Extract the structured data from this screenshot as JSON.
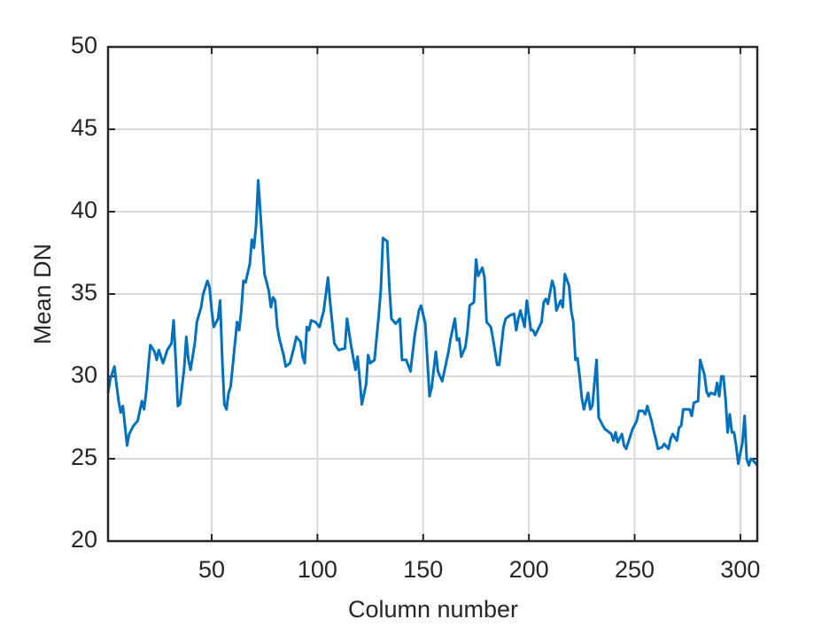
{
  "chart_data": {
    "type": "line",
    "xlabel": "Column number",
    "ylabel": "Mean DN",
    "color": "#0072bd",
    "grid": true,
    "xlim": [
      1,
      308
    ],
    "xticks": [
      50,
      100,
      150,
      200,
      250,
      300
    ],
    "ylim": [
      20,
      50
    ],
    "yticks": [
      20,
      25,
      30,
      35,
      40,
      45,
      50
    ],
    "x": [
      1,
      2,
      4,
      5,
      6,
      7,
      8,
      9,
      10,
      11,
      13,
      15,
      17,
      18,
      19,
      20,
      21,
      23,
      24,
      25,
      27,
      29,
      31,
      32,
      33,
      34,
      35,
      37,
      38,
      39,
      40,
      42,
      43,
      45,
      46,
      48,
      49,
      50,
      51,
      53,
      54,
      55,
      56,
      57,
      58,
      59,
      61,
      62,
      63,
      64,
      65,
      66,
      68,
      69,
      70,
      71,
      72,
      73,
      74,
      75,
      77,
      78,
      79,
      80,
      81,
      82,
      84,
      85,
      87,
      89,
      90,
      92,
      93,
      94,
      95,
      96,
      97,
      99,
      101,
      103,
      105,
      106,
      108,
      110,
      113,
      114,
      116,
      118,
      119,
      120,
      121,
      123,
      124,
      125,
      127,
      129,
      130,
      131,
      133,
      134,
      135,
      137,
      139,
      140,
      142,
      144,
      146,
      148,
      149,
      151,
      152,
      153,
      154,
      156,
      157,
      159,
      160,
      162,
      163,
      165,
      166,
      167,
      168,
      170,
      171,
      172,
      174,
      175,
      176,
      178,
      179,
      180,
      182,
      183,
      185,
      186,
      188,
      189,
      191,
      193,
      194,
      195,
      196,
      198,
      199,
      201,
      202,
      203,
      206,
      207,
      208,
      209,
      211,
      212,
      213,
      215,
      216,
      217,
      219,
      220,
      221,
      222,
      223,
      224,
      225,
      226,
      227,
      228,
      229,
      230,
      231,
      232,
      233,
      235,
      236,
      237,
      239,
      240,
      241,
      242,
      244,
      245,
      246,
      247,
      249,
      251,
      252,
      254,
      255,
      256,
      258,
      259,
      260,
      261,
      263,
      264,
      266,
      267,
      268,
      270,
      271,
      272,
      273,
      276,
      277,
      278,
      280,
      281,
      283,
      284,
      285,
      286,
      288,
      289,
      290,
      291,
      292,
      293,
      294,
      295,
      296,
      297,
      298,
      299,
      301,
      302,
      303,
      304,
      305,
      306,
      308
    ],
    "values": [
      29,
      29.8,
      30.6,
      29.5,
      28.5,
      27.8,
      28.2,
      27,
      25.8,
      26.5,
      27,
      27.3,
      28.5,
      28,
      29,
      30.5,
      31.9,
      31.5,
      31,
      31.6,
      30.8,
      31.6,
      32,
      33.4,
      31,
      28.2,
      28.3,
      30.5,
      32.4,
      31,
      30.4,
      32,
      33.3,
      34.2,
      35,
      35.8,
      35.4,
      34,
      33,
      33.5,
      34.6,
      31,
      28.3,
      28,
      29,
      29.4,
      32,
      33.3,
      32.8,
      34,
      35.8,
      35.7,
      36.8,
      38.3,
      37.8,
      39.2,
      41.9,
      40,
      38,
      36.2,
      35.2,
      34.2,
      34.8,
      34.6,
      33,
      32.3,
      31.3,
      30.6,
      30.8,
      31.8,
      32.4,
      32.1,
      31.2,
      30.8,
      33,
      32.8,
      33.4,
      33.3,
      33,
      34,
      36,
      34.5,
      32,
      31.6,
      31.7,
      33.5,
      31.8,
      30.4,
      31.2,
      29.8,
      28.3,
      29.5,
      31.3,
      30.8,
      31,
      33.7,
      35.3,
      38.4,
      38.2,
      35.5,
      33.5,
      33.2,
      33.5,
      31,
      31,
      30.3,
      32.5,
      34,
      34.3,
      33.2,
      31,
      28.8,
      29.3,
      31.5,
      30.3,
      29.7,
      30.3,
      31.5,
      32.3,
      33.5,
      32.2,
      32.3,
      31.2,
      31.8,
      32.8,
      34.3,
      34.5,
      37.1,
      36.1,
      36.6,
      36,
      33.3,
      33,
      32.3,
      30.7,
      30.7,
      33,
      33.5,
      33.7,
      33.8,
      32.8,
      33.5,
      34,
      33,
      34.6,
      32.8,
      32.8,
      32.5,
      33.3,
      34.5,
      34.7,
      34.4,
      35.8,
      35.4,
      34,
      34.6,
      34.2,
      36.2,
      35.5,
      34,
      33.3,
      31,
      31.1,
      30,
      28.7,
      28,
      28.5,
      29,
      28,
      28.2,
      29.6,
      31,
      27.5,
      27,
      26.8,
      26.7,
      26.5,
      26.1,
      26.6,
      26,
      26.5,
      25.8,
      25.6,
      26,
      26.8,
      27.3,
      27.9,
      27.9,
      27.7,
      28.2,
      27.3,
      26.7,
      26.2,
      25.6,
      25.7,
      25.9,
      25.6,
      26.2,
      26.5,
      26.1,
      26.9,
      27,
      28,
      28,
      27.6,
      28.4,
      28.5,
      31,
      30.1,
      29.1,
      28.8,
      29,
      28.9,
      29.6,
      28.8,
      30,
      30,
      28.6,
      26.6,
      27.7,
      26.6,
      26.6,
      25.8,
      24.7,
      26,
      27.6,
      25,
      24.6,
      25,
      24.9,
      24.6
    ]
  }
}
